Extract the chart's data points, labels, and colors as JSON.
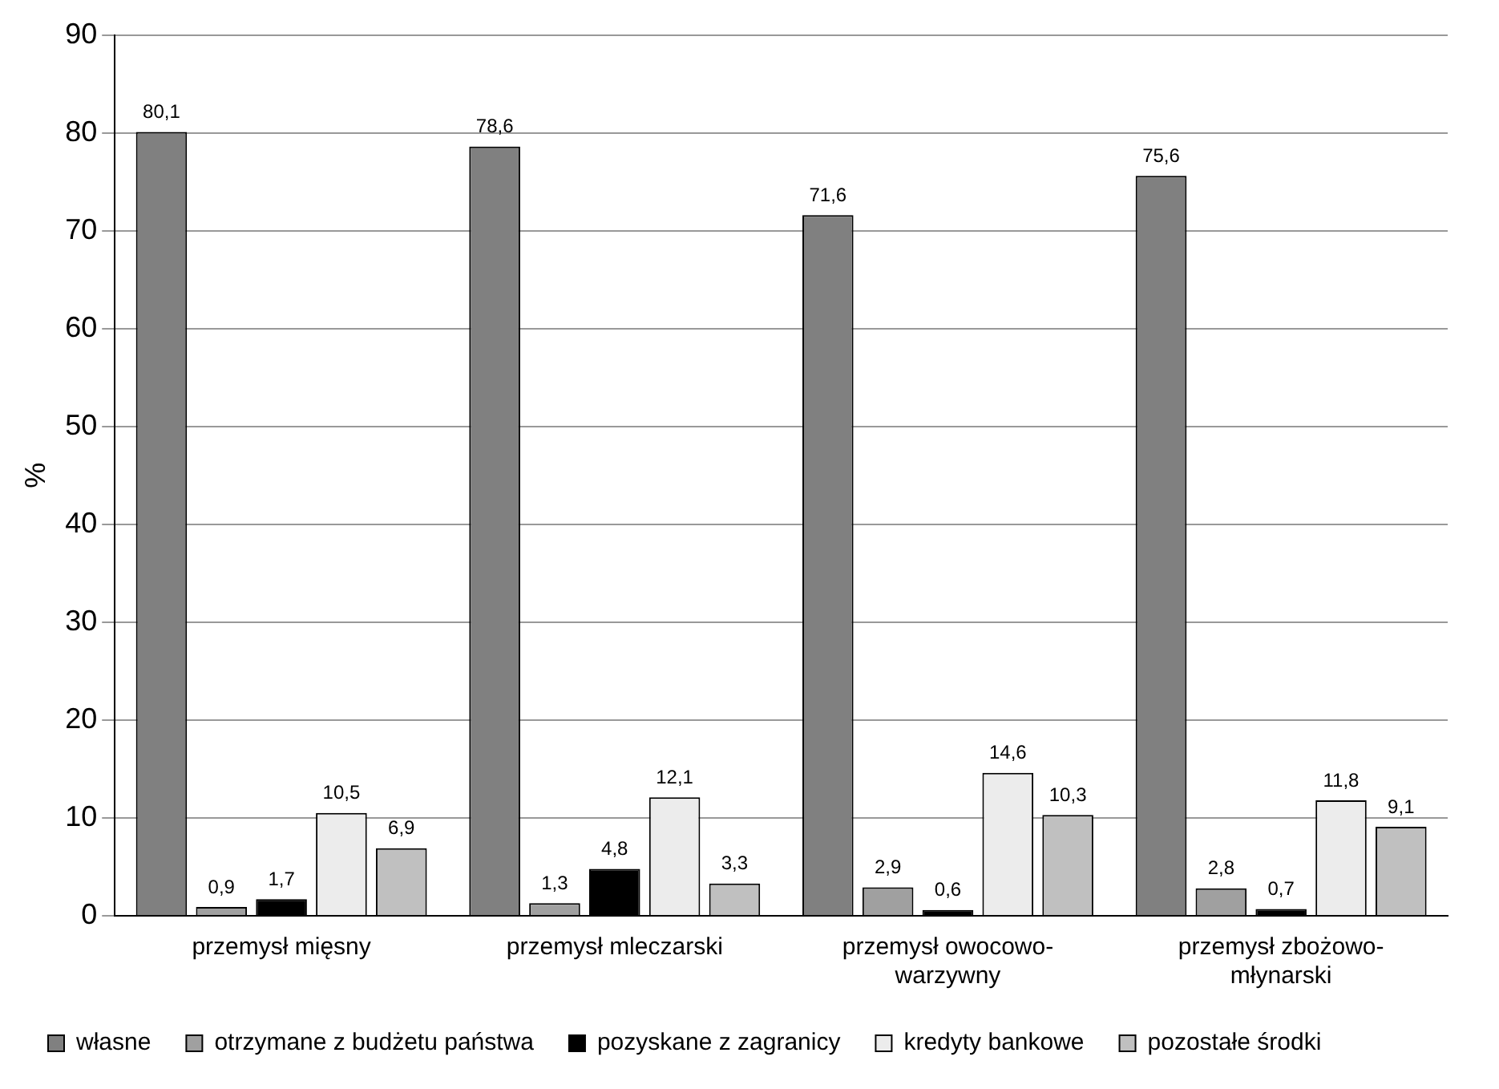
{
  "chart_data": {
    "type": "bar",
    "ylabel": "%",
    "categories": [
      "przemysł mięsny",
      "przemysł mleczarski",
      "przemysł owocowo-warzywny",
      "przemysł zbożowo-młynarski"
    ],
    "series": [
      {
        "name": "własne",
        "color": "#808080",
        "values": [
          80.1,
          78.6,
          71.6,
          75.6
        ],
        "value_labels": [
          "80,1",
          "78,6",
          "71,6",
          "75,6"
        ]
      },
      {
        "name": "otrzymane z budżetu państwa",
        "color": "#a0a0a0",
        "values": [
          0.9,
          1.3,
          2.9,
          2.8
        ],
        "value_labels": [
          "0,9",
          "1,3",
          "2,9",
          "2,8"
        ]
      },
      {
        "name": "pozyskane z zagranicy",
        "color": "#000000",
        "values": [
          1.7,
          4.8,
          0.6,
          0.7
        ],
        "value_labels": [
          "1,7",
          "4,8",
          "0,6",
          "0,7"
        ]
      },
      {
        "name": "kredyty bankowe",
        "color": "#ececec",
        "values": [
          10.5,
          12.1,
          14.6,
          11.8
        ],
        "value_labels": [
          "10,5",
          "12,1",
          "14,6",
          "11,8"
        ]
      },
      {
        "name": "pozostałe środki",
        "color": "#c0c0c0",
        "values": [
          6.9,
          3.3,
          10.3,
          9.1
        ],
        "value_labels": [
          "6,9",
          "3,3",
          "10,3",
          "9,1"
        ]
      }
    ],
    "ylim": [
      0,
      90
    ],
    "yticks": [
      0,
      10,
      20,
      30,
      40,
      50,
      60,
      70,
      80,
      90
    ],
    "grid": "y",
    "legend": "bottom"
  }
}
